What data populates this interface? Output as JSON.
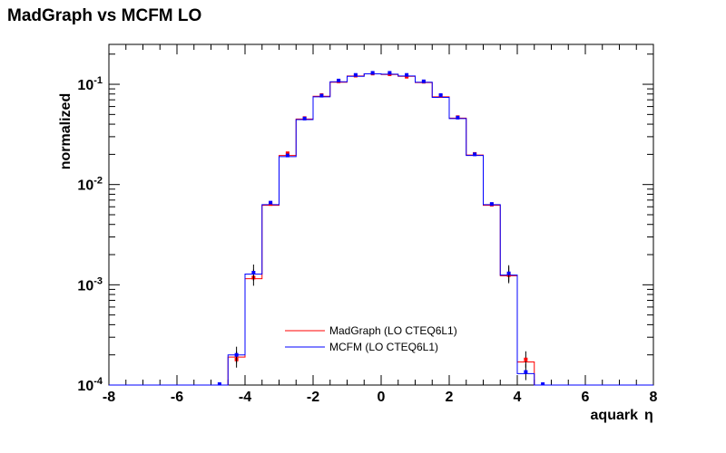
{
  "chart_data": {
    "type": "histogram",
    "title": "MadGraph vs MCFM LO",
    "xlabel": "aquark",
    "xlabel_symbol": "η",
    "ylabel": "normalized",
    "xlim": [
      -8,
      8
    ],
    "ylim": [
      0.0001,
      0.25
    ],
    "yscale": "log",
    "grid": false,
    "legend_position": "bottom-center",
    "x_ticks": [
      "-8",
      "-6",
      "-4",
      "-2",
      "0",
      "2",
      "4",
      "6",
      "8"
    ],
    "y_ticks": [
      {
        "base": "10",
        "exp": "-4"
      },
      {
        "base": "10",
        "exp": "-3"
      },
      {
        "base": "10",
        "exp": "-2"
      },
      {
        "base": "10",
        "exp": "-1"
      }
    ],
    "bin_width": 0.5,
    "bin_centers": [
      -4.25,
      -3.75,
      -3.25,
      -2.75,
      -2.25,
      -1.75,
      -1.25,
      -0.75,
      -0.25,
      0.25,
      0.75,
      1.25,
      1.75,
      2.25,
      2.75,
      3.25,
      3.75,
      4.25
    ],
    "series": [
      {
        "name": "MadGraph (LO CTEQ6L1)",
        "color": "#ff0000",
        "values": [
          0.00019,
          0.00115,
          0.0062,
          0.0195,
          0.045,
          0.076,
          0.105,
          0.121,
          0.127,
          0.125,
          0.12,
          0.104,
          0.075,
          0.046,
          0.0197,
          0.0062,
          0.00123,
          0.00017
        ],
        "points": [
          0.00018,
          0.00118,
          0.0064,
          0.0205,
          0.046,
          0.078,
          0.107,
          0.122,
          0.128,
          0.126,
          0.119,
          0.106,
          0.077,
          0.047,
          0.0202,
          0.0063,
          0.00125,
          0.00018
        ]
      },
      {
        "name": "MCFM (LO CTEQ6L1)",
        "color": "#0000ff",
        "values": [
          0.0002,
          0.00128,
          0.0063,
          0.019,
          0.0445,
          0.075,
          0.106,
          0.12,
          0.127,
          0.126,
          0.121,
          0.105,
          0.074,
          0.0455,
          0.0195,
          0.0063,
          0.00125,
          0.00013
        ],
        "points": [
          0.0002,
          0.00132,
          0.0066,
          0.0195,
          0.0455,
          0.077,
          0.109,
          0.124,
          0.13,
          0.13,
          0.124,
          0.107,
          0.078,
          0.0465,
          0.02,
          0.0064,
          0.0013,
          0.000135
        ]
      }
    ]
  }
}
